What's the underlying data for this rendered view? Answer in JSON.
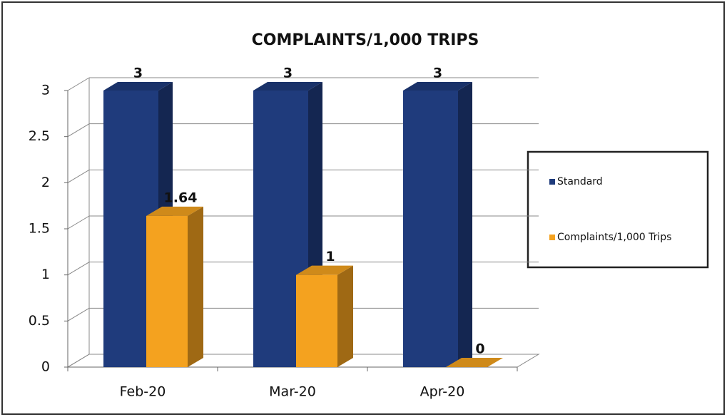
{
  "chart_data": {
    "type": "bar3d",
    "title": "COMPLAINTS/1,000 TRIPS",
    "categories": [
      "Feb-20",
      "Mar-20",
      "Apr-20"
    ],
    "series": [
      {
        "name": "Standard",
        "color": "#1f3b7c",
        "values": [
          3,
          3,
          3
        ]
      },
      {
        "name": "Complaints/1,000 Trips",
        "color": "#f4a21f",
        "values": [
          1.64,
          1,
          0
        ]
      }
    ],
    "ylim": [
      0,
      3
    ],
    "yticks": [
      0,
      0.5,
      1,
      1.5,
      2,
      2.5,
      3
    ],
    "grid": true,
    "legend": "right"
  }
}
